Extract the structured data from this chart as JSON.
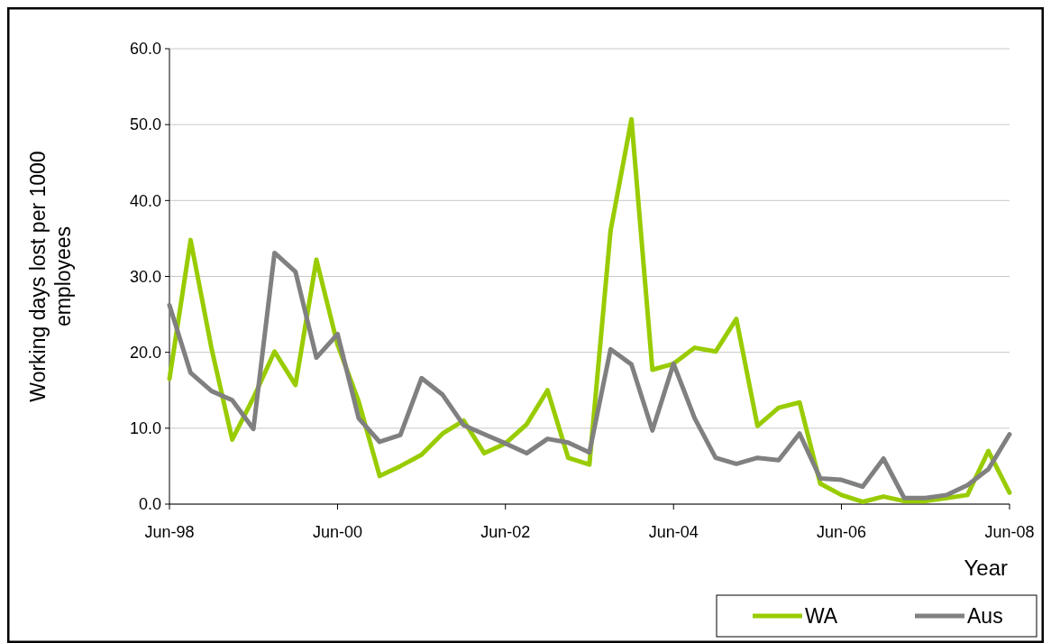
{
  "chart_data": {
    "type": "line",
    "xlabel": "Year",
    "ylabel": "Working days lost per 1000 employees",
    "x": [
      "1998-06",
      "1998-09",
      "1998-12",
      "1999-03",
      "1999-06",
      "1999-09",
      "1999-12",
      "2000-03",
      "2000-06",
      "2000-09",
      "2000-12",
      "2001-03",
      "2001-06",
      "2001-09",
      "2001-12",
      "2002-03",
      "2002-06",
      "2002-09",
      "2002-12",
      "2003-03",
      "2003-06",
      "2003-09",
      "2003-12",
      "2004-03",
      "2004-06",
      "2004-09",
      "2004-12",
      "2005-03",
      "2005-06",
      "2005-09",
      "2005-12",
      "2006-03",
      "2006-06",
      "2006-09",
      "2006-12",
      "2007-03",
      "2007-06",
      "2007-09",
      "2007-12",
      "2008-03",
      "2008-06"
    ],
    "series": [
      {
        "name": "WA",
        "color": "#99cc00",
        "values": [
          16.5,
          34.8,
          20.5,
          8.5,
          14,
          20.1,
          15.7,
          32.2,
          21,
          13.5,
          3.7,
          5,
          6.5,
          9.3,
          11,
          6.7,
          8,
          10.5,
          15,
          6.1,
          5.2,
          36,
          50.7,
          17.7,
          18.5,
          20.6,
          20.1,
          24.4,
          10.3,
          12.7,
          13.4,
          2.7,
          1.2,
          0.3,
          1,
          0.4,
          0.4,
          0.8,
          1.2,
          7,
          1.5
        ]
      },
      {
        "name": "Aus",
        "color": "#808080",
        "values": [
          26.2,
          17.3,
          14.9,
          13.7,
          9.9,
          33.1,
          30.6,
          19.3,
          22.4,
          11.3,
          8.2,
          9.1,
          16.6,
          14.4,
          10.4,
          9.2,
          8,
          6.7,
          8.6,
          8.1,
          6.8,
          20.4,
          18.4,
          9.7,
          18.5,
          11.3,
          6.1,
          5.3,
          6.1,
          5.8,
          9.3,
          3.4,
          3.2,
          2.3,
          6,
          0.8,
          0.8,
          1.2,
          2.5,
          4.6,
          9.2
        ]
      }
    ],
    "xlim": [
      "1998-06",
      "2008-06"
    ],
    "xticks": [
      {
        "value": "1998-06",
        "label": "Jun-98"
      },
      {
        "value": "2000-06",
        "label": "Jun-00"
      },
      {
        "value": "2002-06",
        "label": "Jun-02"
      },
      {
        "value": "2004-06",
        "label": "Jun-04"
      },
      {
        "value": "2006-06",
        "label": "Jun-06"
      },
      {
        "value": "2008-06",
        "label": "Jun-08"
      }
    ],
    "ylim": [
      0,
      60
    ],
    "yticks": [
      {
        "value": 0,
        "label": "0.0"
      },
      {
        "value": 10,
        "label": "10.0"
      },
      {
        "value": 20,
        "label": "20.0"
      },
      {
        "value": 30,
        "label": "30.0"
      },
      {
        "value": 40,
        "label": "40.0"
      },
      {
        "value": 50,
        "label": "50.0"
      },
      {
        "value": 60,
        "label": "60.0"
      }
    ],
    "grid": "y",
    "legend": "bottom right",
    "line_style": "solid"
  }
}
